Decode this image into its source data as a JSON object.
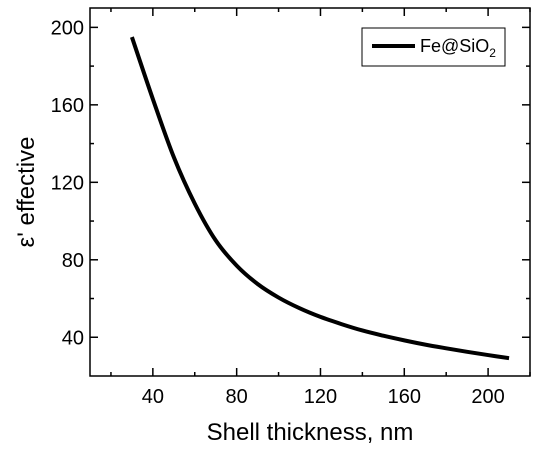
{
  "chart_data": {
    "type": "line",
    "title": "",
    "xlabel": "Shell thickness, nm",
    "ylabel": "ε' effective",
    "xlim": [
      10,
      220
    ],
    "ylim": [
      20,
      210
    ],
    "x_ticks": [
      40,
      80,
      120,
      160,
      200
    ],
    "y_ticks": [
      40,
      80,
      120,
      160,
      200
    ],
    "x_tick_labels": [
      "40",
      "80",
      "120",
      "160",
      "200"
    ],
    "y_tick_labels": [
      "40",
      "80",
      "120",
      "160",
      "200"
    ],
    "minor_ticks": true,
    "grid": false,
    "legend": {
      "position": "top-right",
      "label_main": "Fe@SiO",
      "label_subscript": "2"
    },
    "series": [
      {
        "name": "Fe@SiO2",
        "color": "#000000",
        "x": [
          30,
          40,
          50,
          60,
          70,
          80,
          90,
          100,
          110,
          120,
          130,
          140,
          150,
          160,
          170,
          180,
          190,
          200,
          210
        ],
        "y": [
          195,
          163,
          133,
          109,
          90,
          77,
          67.5,
          60.5,
          55,
          50.5,
          46.8,
          43.5,
          40.8,
          38.4,
          36.2,
          34.3,
          32.5,
          30.8,
          29.2
        ]
      }
    ]
  }
}
